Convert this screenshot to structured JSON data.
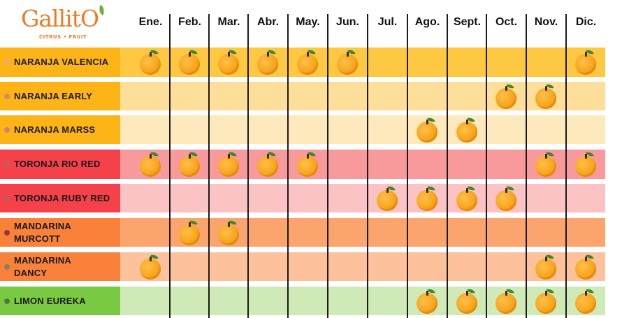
{
  "logo": {
    "word": "GallitO",
    "subtitle": "CITRUS • FRUIT"
  },
  "months": [
    "Ene.",
    "Feb.",
    "Mar.",
    "Abr.",
    "May.",
    "Jun.",
    "Jul.",
    "Ago.",
    "Sept.",
    "Oct.",
    "Nov.",
    "Dic."
  ],
  "icon": "orange-fruit-icon",
  "rows": [
    {
      "name": "NARANJA VALENCIA",
      "label_color": "#fdb417",
      "band_color": "#fec843",
      "dot_color": "#e8b070",
      "months_in_season": [
        1,
        2,
        3,
        4,
        5,
        6,
        12
      ]
    },
    {
      "name": "NARANJA EARLY",
      "label_color": "#fdb417",
      "band_color": "#fedf9a",
      "dot_color": "#d88a62",
      "months_in_season": [
        10,
        11
      ]
    },
    {
      "name": "NARANJA MARSS",
      "label_color": "#fdb417",
      "band_color": "#fee9bd",
      "dot_color": "#d88270",
      "months_in_season": [
        8,
        9
      ]
    },
    {
      "name": "TORONJA RIO RED",
      "label_color": "#f4414a",
      "band_color": "#f89a9c",
      "dot_color": "#c25a5e",
      "months_in_season": [
        1,
        2,
        3,
        4,
        5,
        11,
        12
      ]
    },
    {
      "name": "TORONJA RUBY RED",
      "label_color": "#f4414a",
      "band_color": "#fbc3c4",
      "dot_color": "#b46060",
      "months_in_season": [
        7,
        8,
        9,
        10
      ]
    },
    {
      "name": "MANDARINA\nMURCOTT",
      "label_color": "#f9813a",
      "band_color": "#fca46d",
      "dot_color": "#a03040",
      "months_in_season": [
        2,
        3
      ]
    },
    {
      "name": "MANDARINA\nDANCY",
      "label_color": "#f9813a",
      "band_color": "#fdc29b",
      "dot_color": "#8a8068",
      "months_in_season": [
        1,
        11,
        12
      ]
    },
    {
      "name": "LIMON EUREKA",
      "label_color": "#7ac943",
      "band_color": "#cfeab6",
      "dot_color": "#4f7a3e",
      "months_in_season": [
        8,
        9,
        10,
        11,
        12
      ]
    }
  ]
}
